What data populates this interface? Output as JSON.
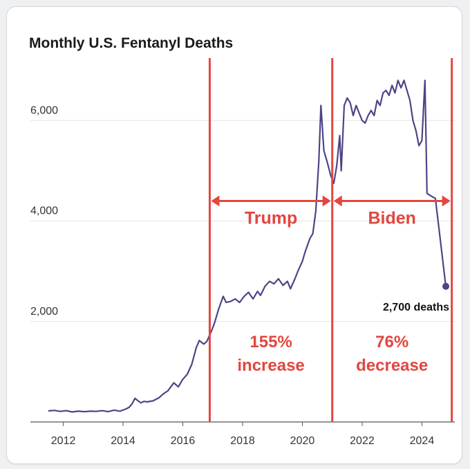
{
  "chart_data": {
    "type": "line",
    "title": "Monthly U.S. Fentanyl Deaths",
    "xlabel": "",
    "ylabel": "",
    "xlim": [
      2010.9,
      2025.1
    ],
    "ylim": [
      0,
      7050
    ],
    "yticks": [
      {
        "value": 2000,
        "label": "2,000"
      },
      {
        "value": 4000,
        "label": "4,000"
      },
      {
        "value": 6000,
        "label": "6,000"
      }
    ],
    "xticks": [
      {
        "value": 2012,
        "label": "2012"
      },
      {
        "value": 2014,
        "label": "2014"
      },
      {
        "value": 2016,
        "label": "2016"
      },
      {
        "value": 2018,
        "label": "2018"
      },
      {
        "value": 2020,
        "label": "2020"
      },
      {
        "value": 2022,
        "label": "2022"
      },
      {
        "value": 2024,
        "label": "2024"
      }
    ],
    "grid": "horizontal",
    "series_color": "#4b4587",
    "accent_color": "#e2463f",
    "series": [
      {
        "points": [
          [
            2011.5,
            220
          ],
          [
            2011.7,
            230
          ],
          [
            2011.9,
            210
          ],
          [
            2012.1,
            225
          ],
          [
            2012.3,
            200
          ],
          [
            2012.5,
            215
          ],
          [
            2012.7,
            205
          ],
          [
            2012.9,
            215
          ],
          [
            2013.1,
            210
          ],
          [
            2013.3,
            225
          ],
          [
            2013.5,
            205
          ],
          [
            2013.7,
            235
          ],
          [
            2013.9,
            215
          ],
          [
            2014.1,
            260
          ],
          [
            2014.2,
            290
          ],
          [
            2014.3,
            360
          ],
          [
            2014.4,
            470
          ],
          [
            2014.5,
            420
          ],
          [
            2014.6,
            380
          ],
          [
            2014.7,
            410
          ],
          [
            2014.8,
            400
          ],
          [
            2015.0,
            420
          ],
          [
            2015.2,
            480
          ],
          [
            2015.35,
            560
          ],
          [
            2015.5,
            620
          ],
          [
            2015.6,
            700
          ],
          [
            2015.7,
            780
          ],
          [
            2015.85,
            700
          ],
          [
            2016.0,
            850
          ],
          [
            2016.15,
            950
          ],
          [
            2016.3,
            1150
          ],
          [
            2016.45,
            1480
          ],
          [
            2016.55,
            1620
          ],
          [
            2016.7,
            1550
          ],
          [
            2016.8,
            1600
          ],
          [
            2016.95,
            1800
          ],
          [
            2017.05,
            1950
          ],
          [
            2017.2,
            2250
          ],
          [
            2017.35,
            2500
          ],
          [
            2017.45,
            2380
          ],
          [
            2017.6,
            2400
          ],
          [
            2017.75,
            2450
          ],
          [
            2017.9,
            2380
          ],
          [
            2018.05,
            2500
          ],
          [
            2018.2,
            2580
          ],
          [
            2018.35,
            2450
          ],
          [
            2018.5,
            2600
          ],
          [
            2018.6,
            2520
          ],
          [
            2018.75,
            2700
          ],
          [
            2018.9,
            2800
          ],
          [
            2019.05,
            2750
          ],
          [
            2019.2,
            2850
          ],
          [
            2019.35,
            2720
          ],
          [
            2019.5,
            2800
          ],
          [
            2019.6,
            2650
          ],
          [
            2019.75,
            2850
          ],
          [
            2019.85,
            3000
          ],
          [
            2020.0,
            3200
          ],
          [
            2020.1,
            3400
          ],
          [
            2020.25,
            3650
          ],
          [
            2020.35,
            3750
          ],
          [
            2020.45,
            4200
          ],
          [
            2020.55,
            5200
          ],
          [
            2020.62,
            6300
          ],
          [
            2020.72,
            5400
          ],
          [
            2020.82,
            5200
          ],
          [
            2020.95,
            4900
          ],
          [
            2021.05,
            4750
          ],
          [
            2021.15,
            5100
          ],
          [
            2021.25,
            5700
          ],
          [
            2021.3,
            5000
          ],
          [
            2021.4,
            6300
          ],
          [
            2021.5,
            6450
          ],
          [
            2021.6,
            6350
          ],
          [
            2021.7,
            6100
          ],
          [
            2021.8,
            6300
          ],
          [
            2021.9,
            6150
          ],
          [
            2022.0,
            6000
          ],
          [
            2022.1,
            5950
          ],
          [
            2022.2,
            6100
          ],
          [
            2022.3,
            6200
          ],
          [
            2022.4,
            6100
          ],
          [
            2022.5,
            6400
          ],
          [
            2022.6,
            6300
          ],
          [
            2022.7,
            6550
          ],
          [
            2022.8,
            6600
          ],
          [
            2022.9,
            6500
          ],
          [
            2023.0,
            6700
          ],
          [
            2023.1,
            6550
          ],
          [
            2023.2,
            6800
          ],
          [
            2023.3,
            6650
          ],
          [
            2023.4,
            6800
          ],
          [
            2023.5,
            6600
          ],
          [
            2023.6,
            6400
          ],
          [
            2023.7,
            6000
          ],
          [
            2023.8,
            5800
          ],
          [
            2023.9,
            5500
          ],
          [
            2024.0,
            5600
          ],
          [
            2024.1,
            6800
          ],
          [
            2024.17,
            4550
          ],
          [
            2024.3,
            4500
          ],
          [
            2024.45,
            4450
          ],
          [
            2024.6,
            3700
          ],
          [
            2024.8,
            2700
          ]
        ]
      }
    ],
    "end_label": "2,700 deaths",
    "annotations": [
      {
        "name": "Trump",
        "x_start": 2016.9,
        "x_end": 2021.0,
        "label": "Trump",
        "note_line1": "155%",
        "note_line2": "increase"
      },
      {
        "name": "Biden",
        "x_start": 2021.0,
        "x_end": 2025.0,
        "label": "Biden",
        "note_line1": "76%",
        "note_line2": "decrease"
      }
    ]
  }
}
